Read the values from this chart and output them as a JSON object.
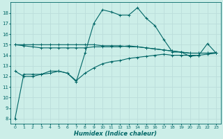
{
  "xlabel": "Humidex (Indice chaleur)",
  "bg_color": "#cceee8",
  "grid_color": "#bbddda",
  "line_color": "#006666",
  "xlim": [
    -0.5,
    23.5
  ],
  "ylim": [
    7.5,
    19.0
  ],
  "yticks": [
    8,
    9,
    10,
    11,
    12,
    13,
    14,
    15,
    16,
    17,
    18
  ],
  "xticks": [
    0,
    1,
    2,
    3,
    4,
    5,
    6,
    7,
    8,
    9,
    10,
    11,
    12,
    13,
    14,
    15,
    16,
    17,
    18,
    19,
    20,
    21,
    22,
    23
  ],
  "series": [
    {
      "x": [
        0,
        1,
        2,
        3,
        4,
        5,
        6,
        7,
        8,
        9,
        10,
        11,
        12,
        13,
        14,
        15,
        16,
        17,
        18,
        19,
        20,
        21,
        22,
        23
      ],
      "y": [
        8,
        12.2,
        12.2,
        12.2,
        12.5,
        12.5,
        12.3,
        11.5,
        14.2,
        17.0,
        18.3,
        18.1,
        17.8,
        17.8,
        18.5,
        17.5,
        16.8,
        15.5,
        14.3,
        14.3,
        13.9,
        14.0,
        15.1,
        14.2
      ],
      "linestyle": "solid"
    },
    {
      "x": [
        0,
        1,
        2,
        3,
        4,
        5,
        6,
        7,
        8,
        9,
        10,
        11,
        12,
        13,
        14,
        15,
        16,
        17,
        18,
        19,
        20,
        21,
        22,
        23
      ],
      "y": [
        15.0,
        15.0,
        15.0,
        15.0,
        15.0,
        15.0,
        15.0,
        15.0,
        15.0,
        15.0,
        14.9,
        14.9,
        14.9,
        14.8,
        14.8,
        14.7,
        14.6,
        14.5,
        14.4,
        14.3,
        14.2,
        14.2,
        14.2,
        14.2
      ],
      "linestyle": "solid"
    },
    {
      "x": [
        0,
        1,
        2,
        3,
        4,
        5,
        6,
        7,
        8,
        9,
        10,
        11,
        12,
        13,
        14,
        15,
        16,
        17,
        18,
        19,
        20,
        21,
        22,
        23
      ],
      "y": [
        15.0,
        14.9,
        14.8,
        14.7,
        14.7,
        14.7,
        14.7,
        14.7,
        14.7,
        14.8,
        14.8,
        14.8,
        14.8,
        14.9,
        14.8,
        14.7,
        14.6,
        14.5,
        14.4,
        14.3,
        14.2,
        14.2,
        14.2,
        14.25
      ],
      "linestyle": "solid"
    },
    {
      "x": [
        0,
        1,
        2,
        3,
        4,
        5,
        6,
        7,
        8,
        9,
        10,
        11,
        12,
        13,
        14,
        15,
        16,
        17,
        18,
        19,
        20,
        21,
        22,
        23
      ],
      "y": [
        12.5,
        12.0,
        12.0,
        12.2,
        12.3,
        12.5,
        12.3,
        11.6,
        12.3,
        12.8,
        13.2,
        13.4,
        13.5,
        13.7,
        13.8,
        13.9,
        14.0,
        14.1,
        14.0,
        14.0,
        14.0,
        14.0,
        14.1,
        14.2
      ],
      "linestyle": "solid"
    }
  ]
}
